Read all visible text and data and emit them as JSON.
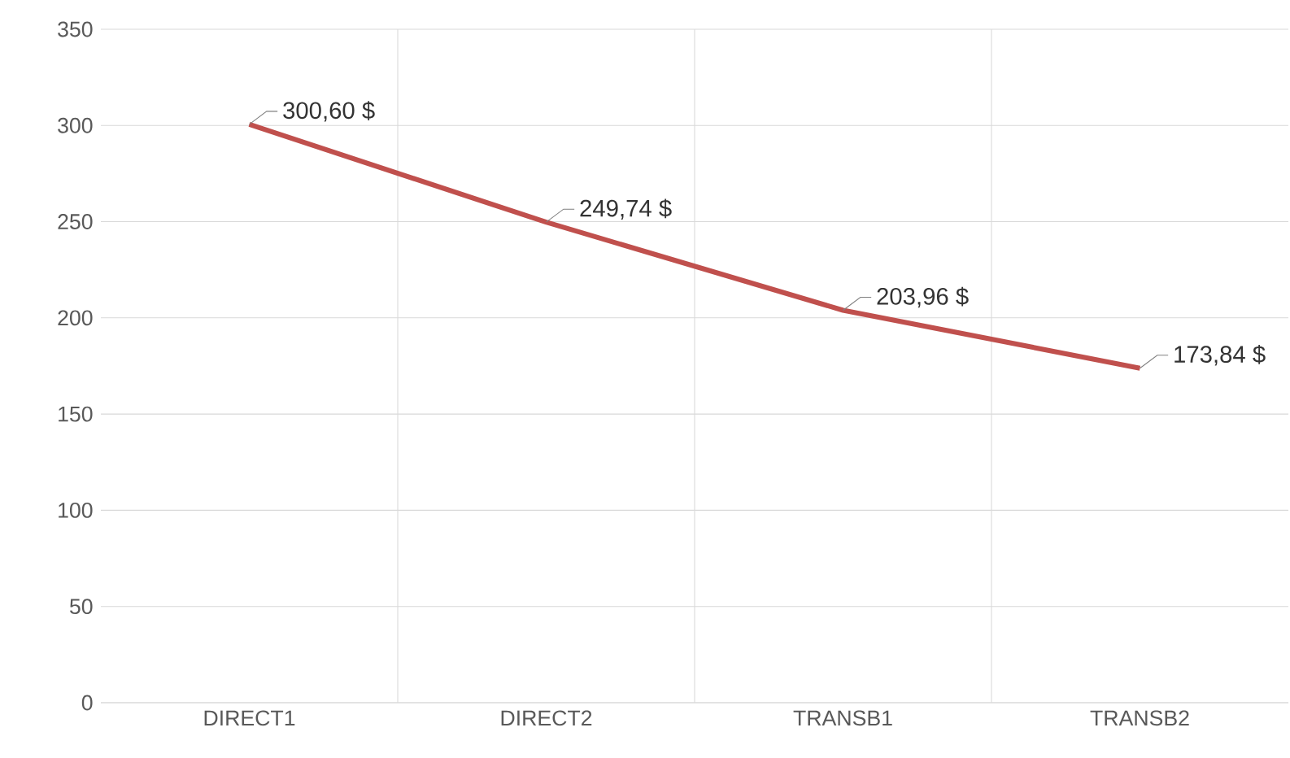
{
  "chart_data": {
    "type": "line",
    "categories": [
      "DIRECT1",
      "DIRECT2",
      "TRANSB1",
      "TRANSB2"
    ],
    "series": [
      {
        "color": "#c0504d",
        "values": [
          300.6,
          249.74,
          203.96,
          173.84
        ],
        "value_labels": [
          "300,60  $",
          "249,74  $",
          "203,96  $",
          "173,84  $"
        ]
      }
    ],
    "ylim": [
      0,
      350
    ],
    "yticks": [
      0,
      50,
      100,
      150,
      200,
      250,
      300,
      350
    ],
    "grid": true,
    "marker": "none",
    "line_style": "solid"
  }
}
